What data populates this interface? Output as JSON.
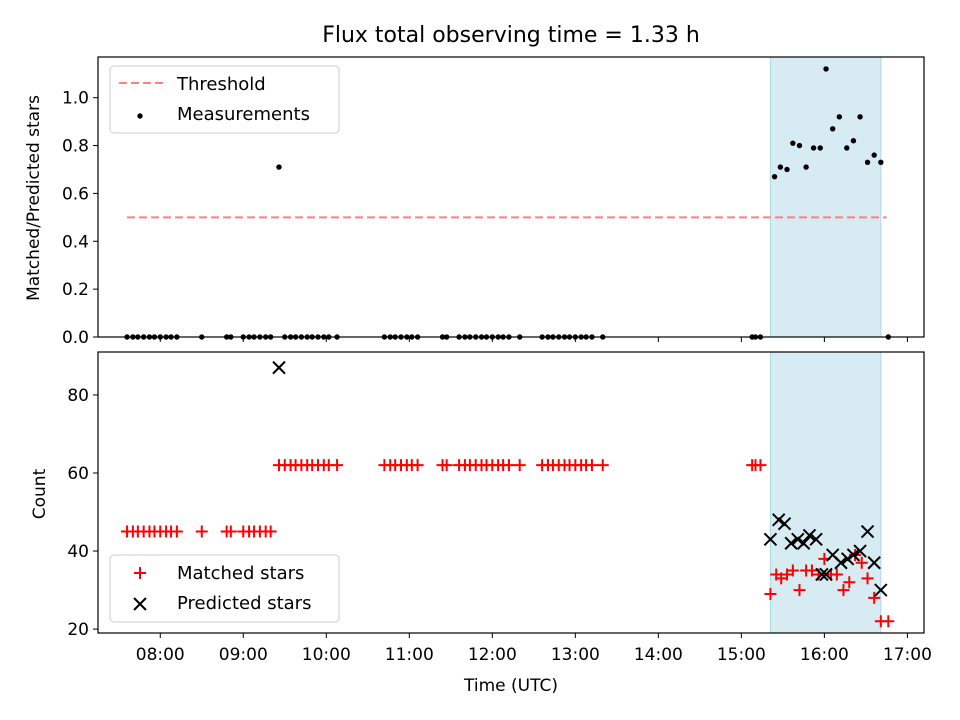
{
  "chart_data": [
    {
      "type": "scatter",
      "title": "Flux total observing time = 1.33 h",
      "xlabel": "",
      "ylabel": "Matched/Predicted stars",
      "xlim_hours": [
        7.25,
        17.2
      ],
      "ylim": [
        0,
        1.17
      ],
      "yticks": [
        0.0,
        0.2,
        0.4,
        0.6,
        0.8,
        1.0
      ],
      "ytick_labels": [
        "0.0",
        "0.2",
        "0.4",
        "0.6",
        "0.8",
        "1.0"
      ],
      "span_hours": [
        15.35,
        16.68
      ],
      "threshold": {
        "value": 0.5,
        "x_range_hours": [
          7.6,
          16.75
        ],
        "color": "#ff7f7f",
        "label": "Threshold"
      },
      "legend": {
        "position": "top-left",
        "entries": [
          "Threshold",
          "Measurements"
        ]
      },
      "series": [
        {
          "name": "Measurements",
          "color": "#000000",
          "x_hours": [
            7.6,
            7.67,
            7.73,
            7.8,
            7.87,
            7.93,
            8.0,
            8.07,
            8.13,
            8.2,
            8.5,
            8.8,
            8.85,
            9.0,
            9.07,
            9.13,
            9.2,
            9.27,
            9.33,
            9.43,
            9.5,
            9.57,
            9.63,
            9.7,
            9.77,
            9.83,
            9.9,
            9.97,
            10.03,
            10.13,
            10.7,
            10.77,
            10.83,
            10.9,
            10.97,
            11.03,
            11.1,
            11.4,
            11.45,
            11.6,
            11.67,
            11.73,
            11.8,
            11.87,
            11.93,
            12.0,
            12.07,
            12.13,
            12.2,
            12.33,
            12.6,
            12.67,
            12.73,
            12.8,
            12.87,
            12.93,
            13.0,
            13.07,
            13.13,
            13.2,
            13.33,
            15.13,
            15.17,
            15.23,
            15.4,
            15.47,
            15.55,
            15.62,
            15.7,
            15.78,
            15.87,
            15.95,
            16.02,
            16.1,
            16.18,
            16.27,
            16.35,
            16.43,
            16.52,
            16.6,
            16.68,
            16.77
          ],
          "y": [
            0,
            0,
            0,
            0,
            0,
            0,
            0,
            0,
            0,
            0,
            0,
            0,
            0,
            0,
            0,
            0,
            0,
            0,
            0,
            0.71,
            0,
            0,
            0,
            0,
            0,
            0,
            0,
            0,
            0,
            0,
            0,
            0,
            0,
            0,
            0,
            0,
            0,
            0,
            0,
            0,
            0,
            0,
            0,
            0,
            0,
            0,
            0,
            0,
            0,
            0,
            0,
            0,
            0,
            0,
            0,
            0,
            0,
            0,
            0,
            0,
            0,
            0,
            0,
            0,
            0.67,
            0.71,
            0.7,
            0.81,
            0.8,
            0.71,
            0.79,
            0.79,
            1.12,
            0.87,
            0.92,
            0.79,
            0.82,
            0.92,
            0.73,
            0.76,
            0.73,
            0.0
          ]
        }
      ]
    },
    {
      "type": "scatter",
      "title": "",
      "xlabel": "Time (UTC)",
      "ylabel": "Count",
      "xlim_hours": [
        7.25,
        17.2
      ],
      "ylim": [
        19,
        91
      ],
      "yticks": [
        20,
        40,
        60,
        80
      ],
      "ytick_labels": [
        "20",
        "40",
        "60",
        "80"
      ],
      "xticks_hours": [
        8,
        9,
        10,
        11,
        12,
        13,
        14,
        15,
        16,
        17
      ],
      "xtick_labels": [
        "08:00",
        "09:00",
        "10:00",
        "11:00",
        "12:00",
        "13:00",
        "14:00",
        "15:00",
        "16:00",
        "17:00"
      ],
      "span_hours": [
        15.35,
        16.68
      ],
      "legend": {
        "position": "bottom-left",
        "entries": [
          "Matched stars",
          "Predicted stars"
        ]
      },
      "series": [
        {
          "name": "Matched stars",
          "color": "#ff0000",
          "marker": "+",
          "x_hours": [
            7.6,
            7.67,
            7.73,
            7.8,
            7.87,
            7.93,
            8.0,
            8.07,
            8.13,
            8.2,
            8.5,
            8.8,
            8.85,
            9.0,
            9.07,
            9.13,
            9.2,
            9.27,
            9.33,
            9.43,
            9.5,
            9.57,
            9.63,
            9.7,
            9.77,
            9.83,
            9.9,
            9.97,
            10.03,
            10.13,
            10.7,
            10.77,
            10.83,
            10.9,
            10.97,
            11.03,
            11.1,
            11.4,
            11.45,
            11.6,
            11.67,
            11.73,
            11.8,
            11.87,
            11.93,
            12.0,
            12.07,
            12.13,
            12.2,
            12.33,
            12.6,
            12.67,
            12.73,
            12.8,
            12.87,
            12.93,
            13.0,
            13.07,
            13.13,
            13.2,
            13.33,
            15.13,
            15.17,
            15.23,
            15.35,
            15.42,
            15.48,
            15.55,
            15.62,
            15.7,
            15.78,
            15.85,
            15.93,
            16.0,
            16.08,
            16.15,
            16.23,
            16.3,
            16.37,
            16.45,
            16.52,
            16.6,
            16.68,
            16.77
          ],
          "y": [
            45,
            45,
            45,
            45,
            45,
            45,
            45,
            45,
            45,
            45,
            45,
            45,
            45,
            45,
            45,
            45,
            45,
            45,
            45,
            62,
            62,
            62,
            62,
            62,
            62,
            62,
            62,
            62,
            62,
            62,
            62,
            62,
            62,
            62,
            62,
            62,
            62,
            62,
            62,
            62,
            62,
            62,
            62,
            62,
            62,
            62,
            62,
            62,
            62,
            62,
            62,
            62,
            62,
            62,
            62,
            62,
            62,
            62,
            62,
            62,
            62,
            62,
            62,
            62,
            29,
            34,
            33,
            34,
            35,
            30,
            35,
            35,
            34,
            38,
            34,
            34,
            30,
            32,
            39,
            37,
            33,
            28,
            22,
            22
          ]
        },
        {
          "name": "Predicted stars",
          "color": "#000000",
          "marker": "x",
          "x_hours": [
            9.43,
            15.35,
            15.45,
            15.52,
            15.6,
            15.68,
            15.75,
            15.82,
            15.9,
            15.97,
            16.02,
            16.1,
            16.2,
            16.28,
            16.35,
            16.43,
            16.52,
            16.6,
            16.68
          ],
          "y": [
            87,
            43,
            48,
            47,
            42,
            43,
            42,
            44,
            43,
            34,
            34,
            39,
            37,
            38,
            39,
            40,
            45,
            37,
            30
          ]
        }
      ]
    }
  ]
}
